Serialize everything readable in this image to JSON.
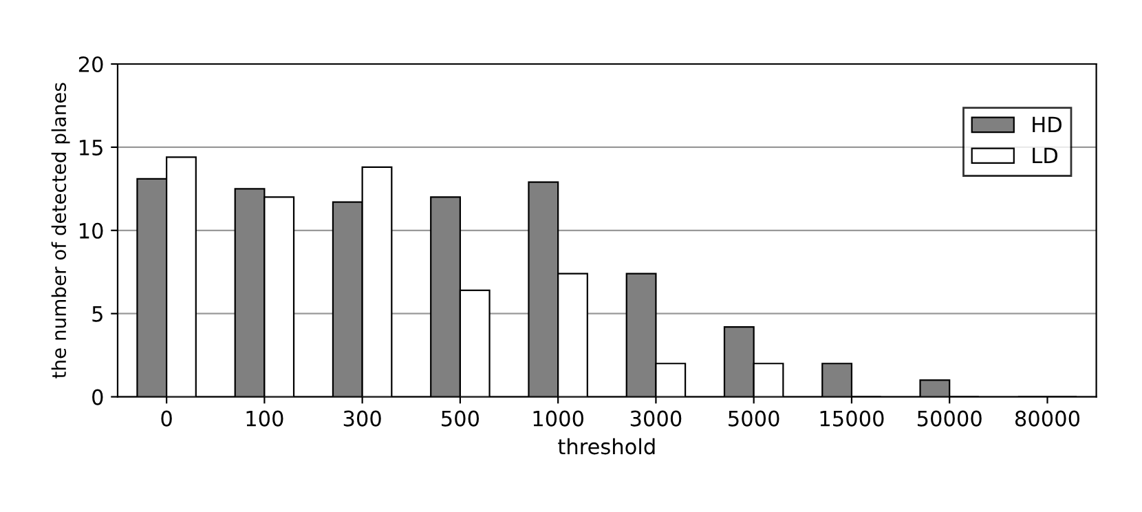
{
  "chart_data": {
    "type": "bar",
    "xlabel": "threshold",
    "ylabel": "the number of detected planes",
    "categories": [
      "0",
      "100",
      "300",
      "500",
      "1000",
      "3000",
      "5000",
      "15000",
      "50000",
      "80000"
    ],
    "series": [
      {
        "name": "HD",
        "color": "#808080",
        "values": [
          13.1,
          12.5,
          11.7,
          12.0,
          12.9,
          7.4,
          4.2,
          2.0,
          1.0,
          0
        ]
      },
      {
        "name": "LD",
        "color": "#ffffff",
        "values": [
          14.4,
          12.0,
          13.8,
          6.4,
          7.4,
          2.0,
          2.0,
          0,
          0,
          0
        ]
      }
    ],
    "ylim": [
      0,
      20
    ],
    "yticks": [
      0,
      5,
      10,
      15,
      20
    ],
    "grid": "y",
    "legend": "top right"
  }
}
